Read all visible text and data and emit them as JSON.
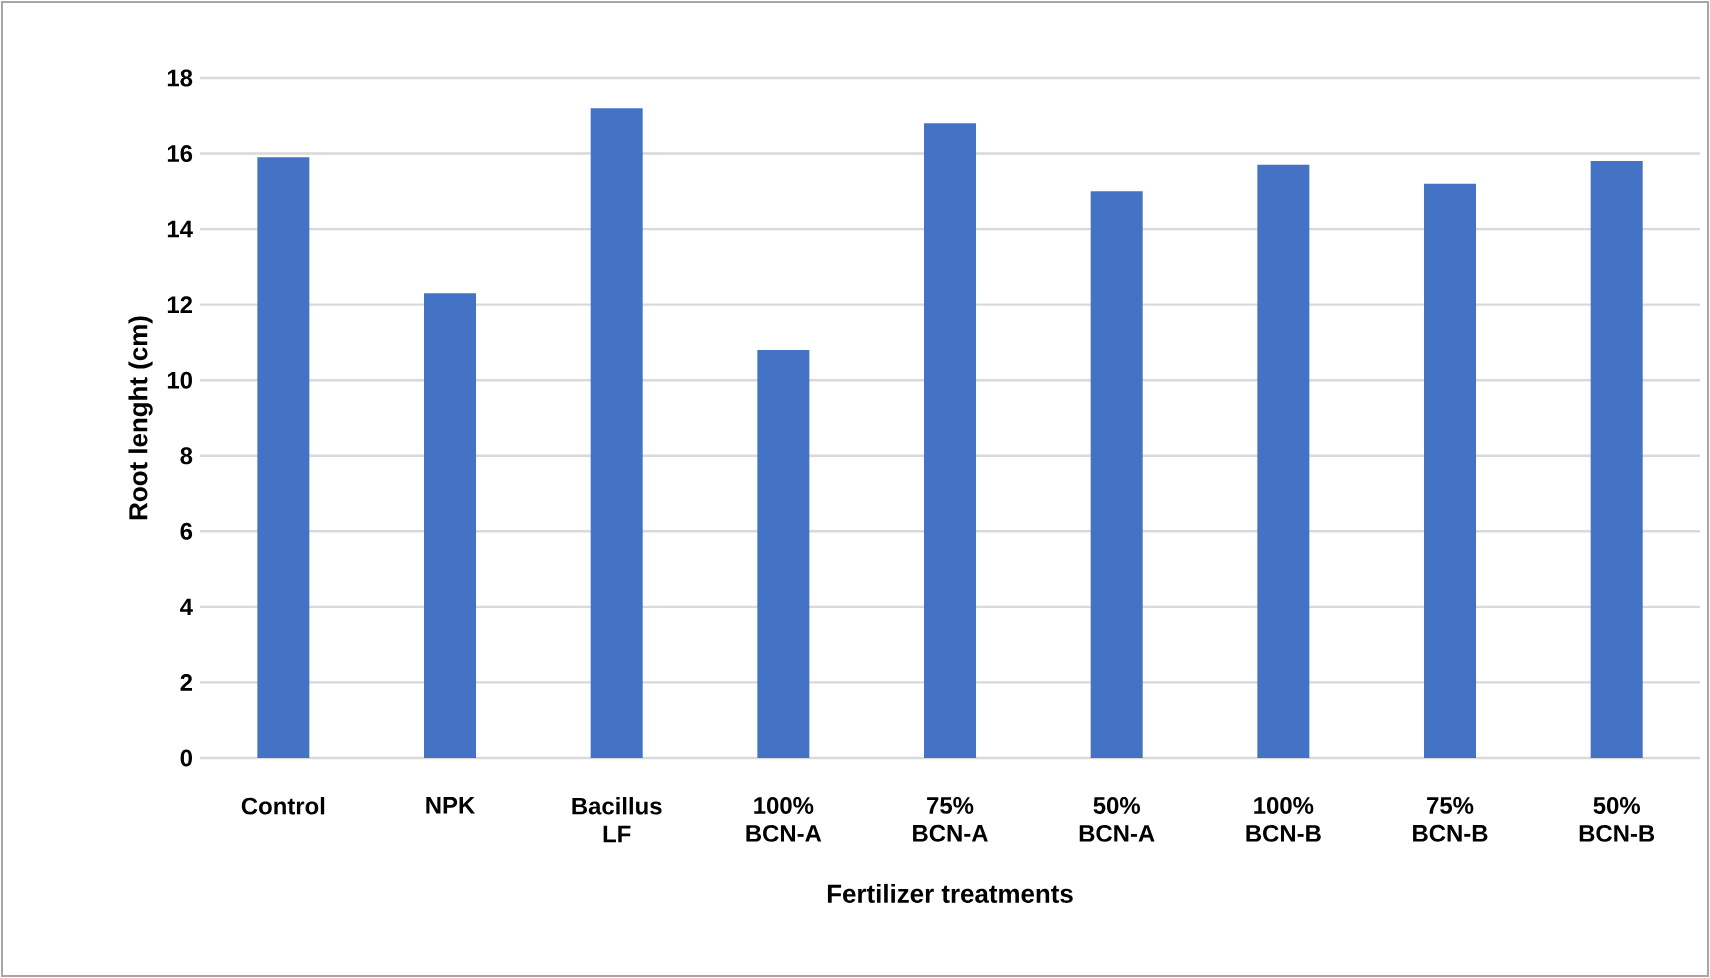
{
  "chart_data": {
    "type": "bar",
    "xlabel": "Fertilizer treatments",
    "ylabel": "Root lenght (cm)",
    "categories": [
      "Control",
      "NPK",
      "Bacillus LF",
      "100% BCN-A",
      "75% BCN-A",
      "50% BCN-A",
      "100% BCN-B",
      "75% BCN-B",
      "50% BCN-B"
    ],
    "values": [
      15.9,
      12.3,
      17.2,
      10.8,
      16.8,
      15.0,
      15.7,
      15.2,
      15.8
    ],
    "color": "#4472c4",
    "ylim": [
      0,
      18
    ],
    "yticks": [
      0,
      2,
      4,
      6,
      8,
      10,
      12,
      14,
      16,
      18
    ],
    "grid": "y"
  }
}
